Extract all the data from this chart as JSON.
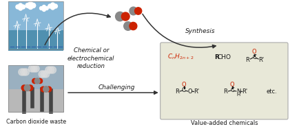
{
  "bg_color": "#ffffff",
  "box_color": "#e8e8d8",
  "red_color": "#cc2200",
  "dark_color": "#1a1a1a",
  "arrow_color": "#333333",
  "gray_mol": "#888888",
  "labels": {
    "chem_reduction": "Chemical or\nelectrochemical\nreduction",
    "synthesis": "Synthesis",
    "challenging": "Challenging",
    "co2_waste": "Carbon dioxide waste",
    "value_added": "Value-added chemicals"
  },
  "figsize": [
    4.21,
    1.88
  ],
  "dpi": 100
}
